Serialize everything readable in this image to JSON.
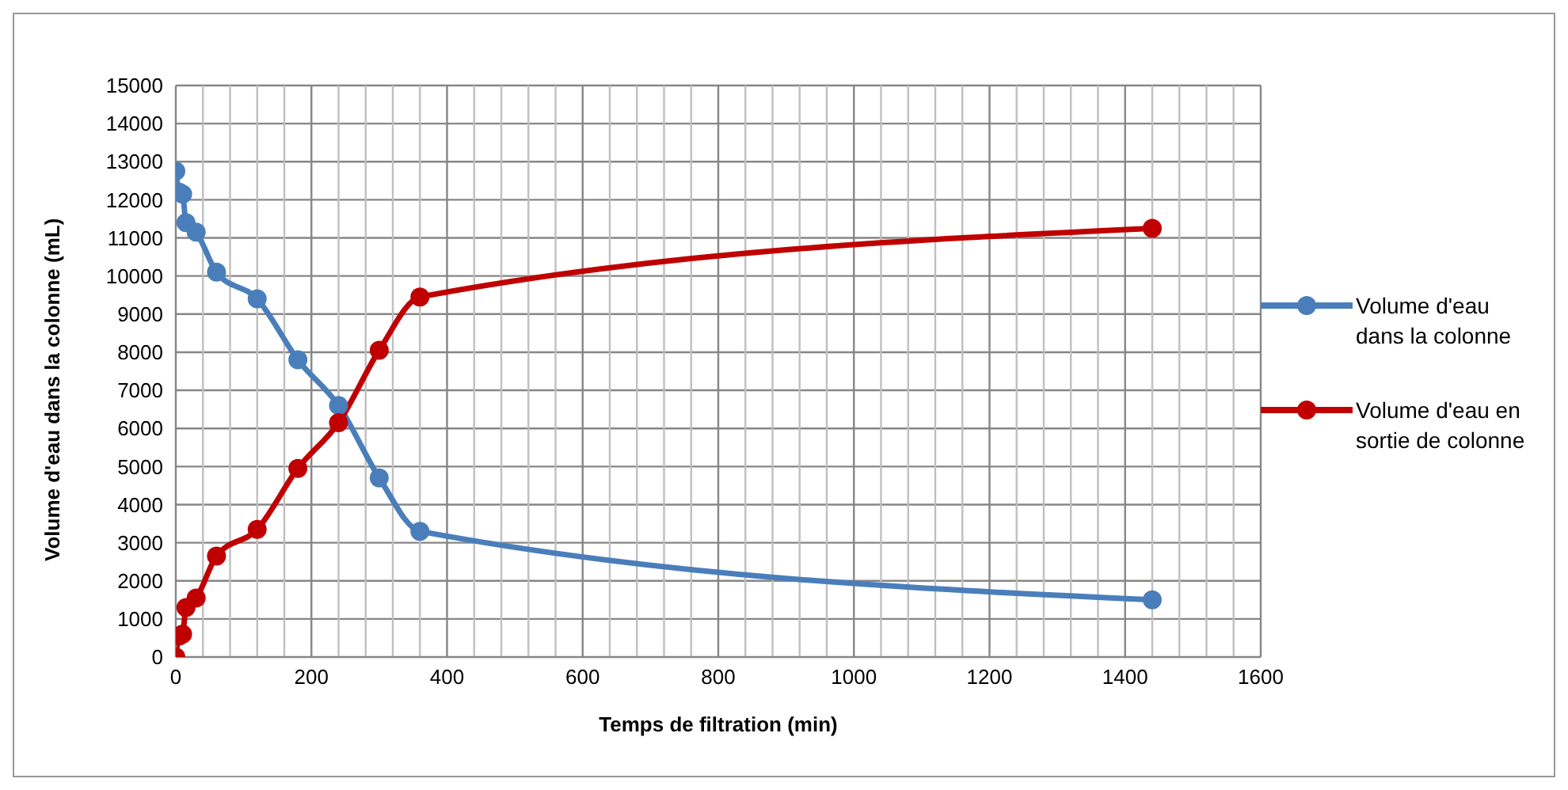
{
  "chart_data": {
    "type": "line",
    "xlabel": "Temps de filtration (min)",
    "ylabel": "Volume d'eau dans la colonne  (mL)",
    "x": [
      0,
      5,
      10,
      15,
      30,
      60,
      120,
      180,
      240,
      300,
      360,
      1440
    ],
    "series": [
      {
        "name": "Volume d'eau dans la colonne",
        "color": "#4a7ebb",
        "values": [
          12750,
          12200,
          12150,
          11400,
          11150,
          10100,
          9400,
          7800,
          6600,
          4700,
          3300,
          1500
        ]
      },
      {
        "name": "Volume d'eau en sortie de colonne",
        "color": "#c00000",
        "values": [
          0,
          550,
          600,
          1300,
          1550,
          2650,
          3350,
          4950,
          6150,
          8050,
          9450,
          11250
        ]
      }
    ],
    "xlim": [
      0,
      1600
    ],
    "xticks": [
      0,
      200,
      400,
      600,
      800,
      1000,
      1200,
      1400,
      1600
    ],
    "ylim": [
      0,
      15000
    ],
    "yticks": [
      0,
      1000,
      2000,
      3000,
      4000,
      5000,
      6000,
      7000,
      8000,
      9000,
      10000,
      11000,
      12000,
      13000,
      14000,
      15000
    ],
    "grid": true,
    "legend": "right",
    "marker": "circle",
    "line_style": "solid"
  }
}
